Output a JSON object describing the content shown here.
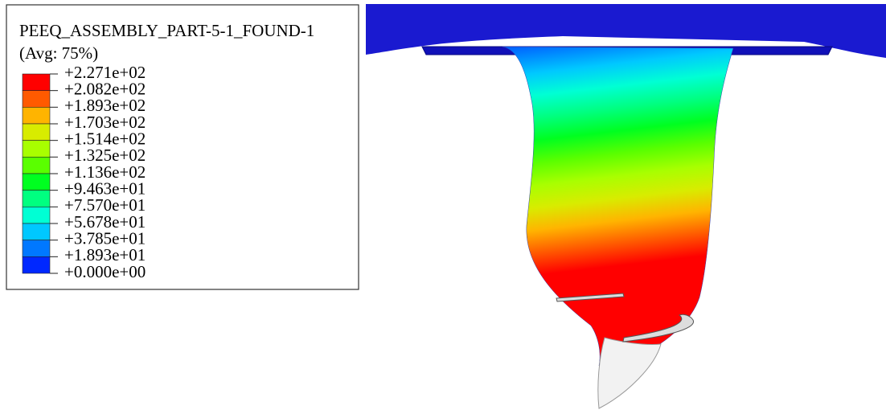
{
  "legend": {
    "title": "PEEQ_ASSEMBLY_PART-5-1_FOUND-1",
    "subtitle": "(Avg: 75%)",
    "levels": [
      "+2.271e+02",
      "+2.082e+02",
      "+1.893e+02",
      "+1.703e+02",
      "+1.514e+02",
      "+1.325e+02",
      "+1.136e+02",
      "+9.463e+01",
      "+7.570e+01",
      "+5.678e+01",
      "+3.785e+01",
      "+1.893e+01",
      "+0.000e+00"
    ],
    "colors": [
      "#ff0000",
      "#ff5a00",
      "#ffb400",
      "#d8ec00",
      "#a8ff00",
      "#5aff00",
      "#00ff20",
      "#00ff80",
      "#00ffd4",
      "#00c8ff",
      "#0078ff",
      "#0028ff"
    ]
  }
}
